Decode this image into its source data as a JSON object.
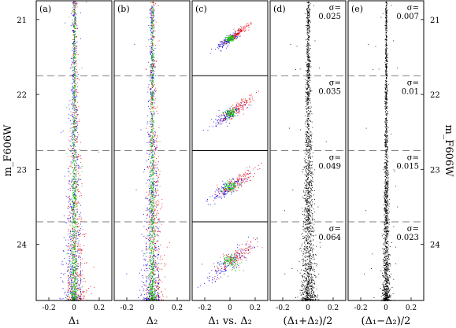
{
  "chart_data": [
    {
      "type": "scatter",
      "panel": "(a)",
      "xlabel": "Δ₁",
      "ylabel": "m_F606W",
      "xlim": [
        -0.3,
        0.3
      ],
      "ylim": [
        24.75,
        20.75
      ],
      "x_ticks": [
        "-0.2",
        "0",
        "0.2"
      ],
      "y_ticks": [
        "21",
        "22",
        "23",
        "24"
      ],
      "series_colors": [
        "#0000ee",
        "#00cc00",
        "#ee0000"
      ],
      "dashed_magnitude_bins": [
        21.75,
        22.75,
        23.7
      ]
    },
    {
      "type": "scatter",
      "panel": "(b)",
      "xlabel": "Δ₂",
      "xlim": [
        -0.3,
        0.3
      ],
      "ylim": [
        24.75,
        20.75
      ],
      "x_ticks": [
        "-0.2",
        "0",
        "0.2"
      ],
      "series_colors": [
        "#0000ee",
        "#00cc00",
        "#ee0000"
      ]
    },
    {
      "type": "scatter",
      "panel": "(c)",
      "xlabel": "Δ₁ vs. Δ₂",
      "xlim": [
        -0.3,
        0.3
      ],
      "x_ticks": [
        "-0.2",
        "0",
        "0.2"
      ],
      "sub_panels": 4,
      "series_colors": [
        "#0000ee",
        "#00cc00",
        "#ee0000"
      ]
    },
    {
      "type": "scatter",
      "panel": "(d)",
      "xlabel": "(Δ₁+Δ₂)/2",
      "xlim": [
        -0.3,
        0.3
      ],
      "x_ticks": [
        "-0.2",
        "0",
        "0.2"
      ],
      "sigma_label": "σ=",
      "sigma_values": [
        "0.025",
        "0.035",
        "0.049",
        "0.064"
      ],
      "color": "#000000"
    },
    {
      "type": "scatter",
      "panel": "(e)",
      "xlabel": "(Δ₁−Δ₂)/2",
      "ylabel": "m_F606W",
      "xlim": [
        -0.3,
        0.3
      ],
      "x_ticks": [
        "-0.2",
        "0",
        "0.2"
      ],
      "y_ticks": [
        "21",
        "22",
        "23",
        "24"
      ],
      "sigma_label": "σ=",
      "sigma_values": [
        "0.007",
        "0.01",
        "0.015",
        "0.023"
      ],
      "color": "#000000"
    }
  ]
}
